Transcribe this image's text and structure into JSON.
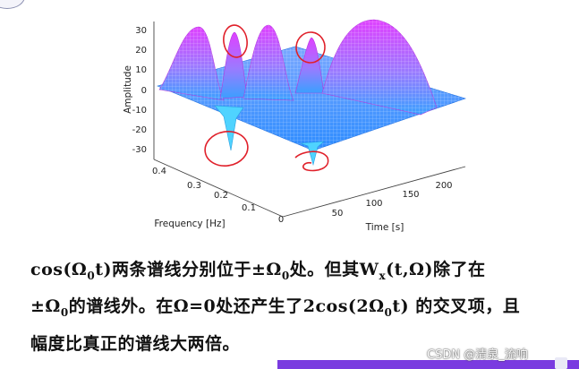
{
  "plot": {
    "ylabel": "Amplitude",
    "xlabel": "Time [s]",
    "depth_label": "Frequency [Hz]",
    "amplitude_ticks": [
      "30",
      "20",
      "10",
      "0",
      "-10",
      "-20",
      "-30"
    ],
    "time_ticks": [
      "50",
      "100",
      "150",
      "200"
    ],
    "freq_ticks": [
      "0.4",
      "0.3",
      "0.2",
      "0.1",
      "0"
    ],
    "surface_color_high": "#e040ff",
    "surface_color_low": "#3aa0ff",
    "annotation_color": "#e0202a"
  },
  "text": {
    "line1": {
      "a": "cos(Ω",
      "a_sub": "0",
      "b": "t)两条谱线分别位于±Ω",
      "b_sub": "0",
      "c": "处。但其W",
      "c_sub": "x",
      "d": "(t,Ω)除了在"
    },
    "line2": {
      "a": "±Ω",
      "a_sub": "0",
      "b": "的谱线外。在Ω=0处还产生了2cos(2Ω",
      "b_sub": "0",
      "c": "t) 的交叉项，且"
    },
    "line3": "幅度比真正的谱线大两倍。"
  },
  "watermark": "CSDN @清泉_流响"
}
